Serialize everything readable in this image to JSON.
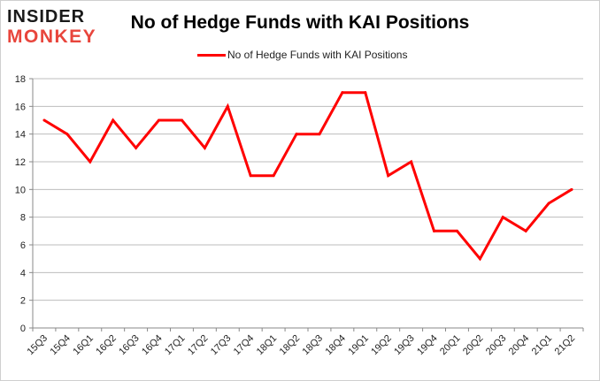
{
  "logo": {
    "line1": "INSIDER",
    "line2": "MONKEY"
  },
  "chart_data": {
    "type": "line",
    "title": "No of Hedge Funds with KAI Positions",
    "xlabel": "",
    "ylabel": "",
    "categories": [
      "15Q3",
      "15Q4",
      "16Q1",
      "16Q2",
      "16Q3",
      "16Q4",
      "17Q1",
      "17Q2",
      "17Q3",
      "17Q4",
      "18Q1",
      "18Q2",
      "18Q3",
      "18Q4",
      "19Q1",
      "19Q2",
      "19Q3",
      "19Q4",
      "20Q1",
      "20Q2",
      "20Q3",
      "20Q4",
      "21Q1",
      "21Q2"
    ],
    "series": [
      {
        "name": "No of Hedge Funds with KAI Positions",
        "values": [
          15,
          14,
          12,
          15,
          13,
          15,
          15,
          13,
          16,
          11,
          11,
          14,
          14,
          17,
          17,
          11,
          12,
          7,
          7,
          5,
          8,
          7,
          9,
          10
        ],
        "color": "#ff0000"
      }
    ],
    "ylim": [
      0,
      18
    ],
    "yticks": [
      0,
      2,
      4,
      6,
      8,
      10,
      12,
      14,
      16,
      18
    ],
    "grid": true,
    "legend_position": "top"
  }
}
